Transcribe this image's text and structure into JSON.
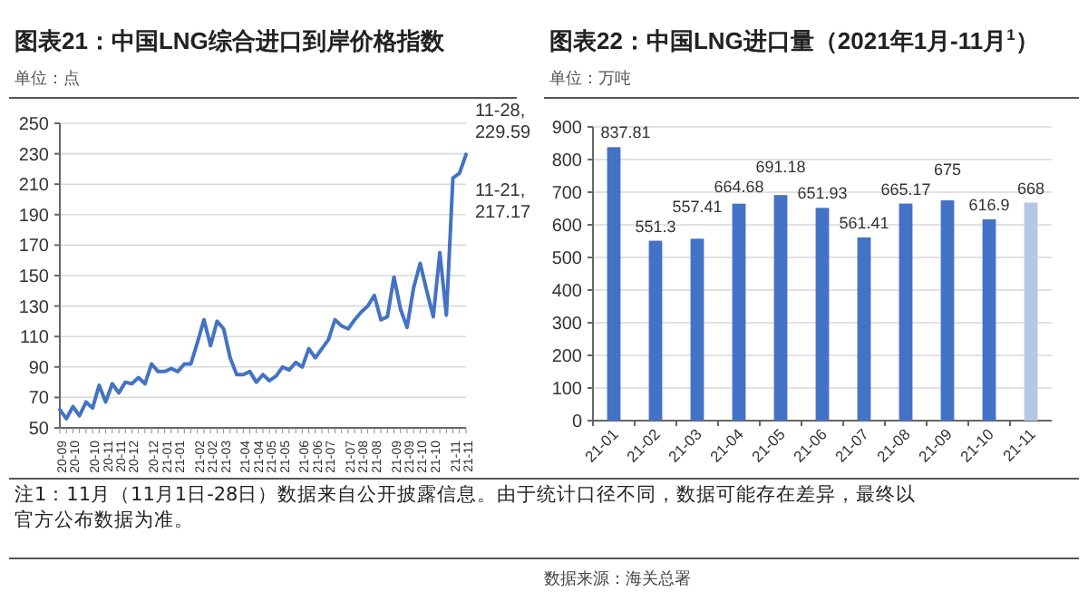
{
  "chart_data": [
    {
      "type": "line",
      "title": "图表21：中国LNG综合进口到岸价格指数",
      "subtitle": "单位：点",
      "categories": [
        "20-09",
        null,
        "20-10",
        null,
        null,
        "20-10",
        null,
        "20-11",
        null,
        "20-11",
        null,
        "20-12",
        null,
        null,
        "20-12",
        null,
        "21-01",
        null,
        "21-01",
        null,
        null,
        "21-02",
        null,
        "21-02",
        null,
        "21-03",
        null,
        null,
        "21-04",
        null,
        "21-04",
        null,
        "21-05",
        null,
        "21-05",
        null,
        null,
        "21-06",
        null,
        "21-06",
        null,
        "21-07",
        null,
        null,
        "21-07",
        null,
        "21-08",
        null,
        "21-08",
        null,
        null,
        "21-09",
        null,
        "21-09",
        null,
        "21-10",
        null,
        "21-10",
        null,
        null,
        "21-11",
        null,
        "21-11"
      ],
      "series": [
        {
          "color": "#4472c4",
          "values": [
            62,
            56,
            64,
            58,
            67,
            63,
            78,
            67,
            79,
            73,
            80,
            79,
            83,
            79,
            92,
            87,
            87,
            89,
            87,
            92,
            92,
            106,
            121,
            104,
            120,
            115,
            96,
            85,
            85,
            87,
            80,
            85,
            81,
            84,
            90,
            88,
            93,
            90,
            102,
            96,
            102,
            108,
            121,
            117,
            115,
            121,
            126,
            130,
            137,
            121,
            123,
            149,
            128,
            116,
            142,
            158,
            140,
            123,
            165,
            124,
            214,
            217.17,
            229.59
          ]
        }
      ],
      "ylim": [
        50,
        250
      ],
      "yticks": [
        50,
        70,
        90,
        110,
        130,
        150,
        170,
        190,
        210,
        230,
        250
      ],
      "grid": "y",
      "annotations": [
        "11-28, 229.59",
        "11-21, 217.17"
      ]
    },
    {
      "type": "bar",
      "title": "图表22：中国LNG进口量（2021年1月-11月$^{1}$）",
      "subtitle": "单位：万吨",
      "categories": [
        "21-01",
        "21-02",
        "21-03",
        "21-04",
        "21-05",
        "21-06",
        "21-07",
        "21-08",
        "21-09",
        "21-10",
        "21-11"
      ],
      "values": [
        837.81,
        551.3,
        557.41,
        664.68,
        691.18,
        651.93,
        561.41,
        665.17,
        675,
        616.9,
        668
      ],
      "colors": [
        "#4472c4",
        "#4472c4",
        "#4472c4",
        "#4472c4",
        "#4472c4",
        "#4472c4",
        "#4472c4",
        "#4472c4",
        "#4472c4",
        "#4472c4",
        "#b4c7e7"
      ],
      "data_labels": true,
      "ylim": [
        0,
        900
      ],
      "yticks": [
        0,
        100,
        200,
        300,
        400,
        500,
        600,
        700,
        800,
        900
      ],
      "grid": "y",
      "annotations": [
        "注1：11月（11月1日-28日）数据来自公开披露信息。由于统计口径不同，数据可能存在差异，最终以官方公布数据为准。",
        "数据来源：海关总署"
      ]
    }
  ]
}
